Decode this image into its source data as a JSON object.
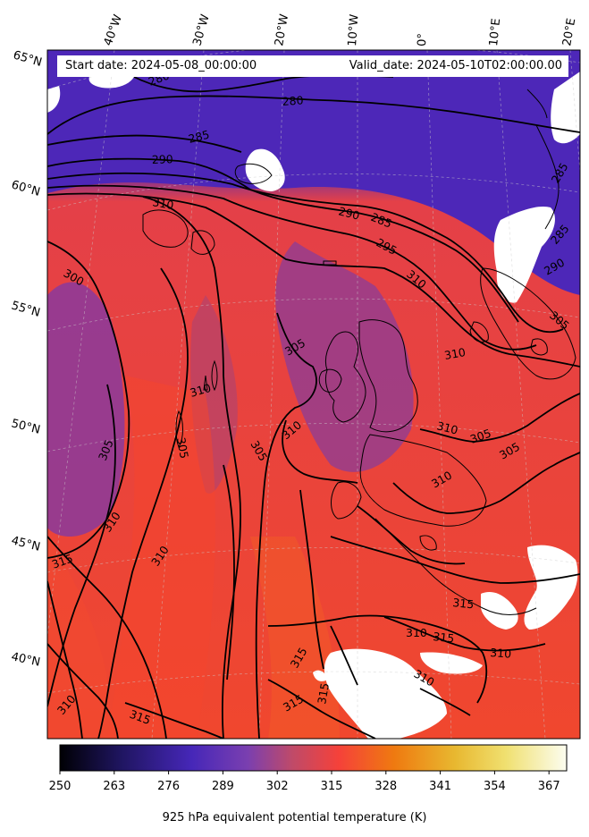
{
  "header": {
    "start_date": "Start date: 2024-05-08_00:00:00",
    "valid_date": "Valid_date: 2024-05-10T02:00:00.00"
  },
  "map": {
    "longitude_labels": [
      "40°W",
      "30°W",
      "20°W",
      "10°W",
      "0°",
      "10°E",
      "20°E"
    ],
    "latitude_labels": [
      "65°N",
      "60°N",
      "55°N",
      "50°N",
      "45°N",
      "40°N"
    ],
    "contour_labels": [
      "280",
      "280",
      "285",
      "290",
      "285",
      "290",
      "295",
      "310",
      "300",
      "305",
      "310",
      "305",
      "305",
      "310",
      "310",
      "305",
      "310",
      "305",
      "310",
      "310",
      "305",
      "310",
      "310",
      "315",
      "315",
      "310",
      "315",
      "310",
      "310",
      "315",
      "315",
      "315",
      "315",
      "310",
      "285",
      "290",
      "285",
      "305"
    ]
  },
  "colorbar": {
    "ticks": [
      "250",
      "263",
      "276",
      "289",
      "302",
      "315",
      "328",
      "341",
      "354",
      "367"
    ],
    "label": "925 hPa equivalent potential temperature (K)",
    "colors": [
      "#000004",
      "#1f1560",
      "#4627b8",
      "#7a3fb0",
      "#c04a68",
      "#f5413a",
      "#ef7a10",
      "#e8b830",
      "#f0e070",
      "#fcfdf0"
    ]
  }
}
